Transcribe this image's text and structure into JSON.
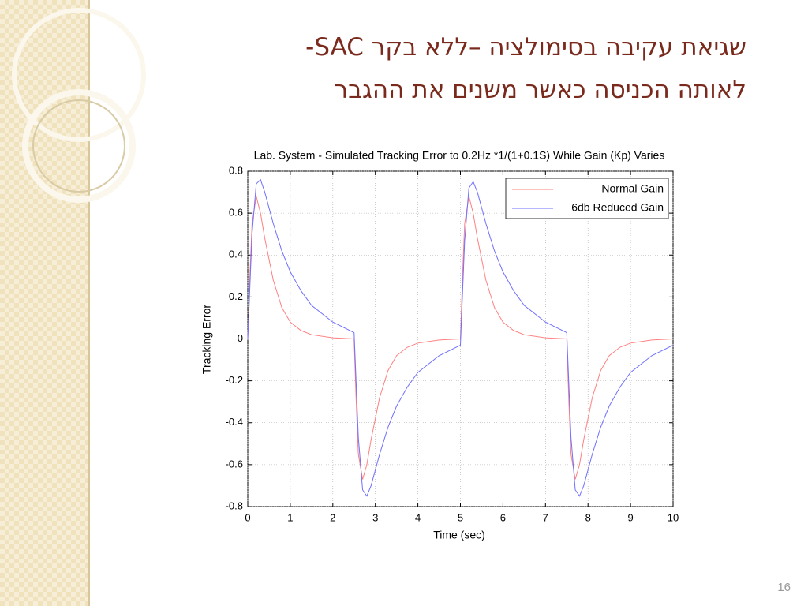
{
  "slide": {
    "title_lines": [
      "שגיאת עקיבה בסימולציה –ללא בקר SAC-",
      "לאותה הכניסה כאשר משנים את ההגבר"
    ],
    "page_number": "16"
  },
  "chart_data": {
    "type": "line",
    "title": "Lab. System - Simulated Tracking Error to 0.2Hz *1/(1+0.1S) While Gain (Kp) Varies",
    "x_label": "Time (sec)",
    "y_label": "Tracking Error",
    "x": [
      0,
      0.05,
      0.1,
      0.2,
      0.3,
      0.4,
      0.6,
      0.8,
      1,
      1.25,
      1.5,
      2,
      2.5,
      2.55,
      2.6,
      2.7,
      2.8,
      2.9,
      3.1,
      3.3,
      3.5,
      3.75,
      4,
      4.5,
      5,
      5.05,
      5.1,
      5.2,
      5.3,
      5.4,
      5.6,
      5.8,
      6,
      6.25,
      6.5,
      7,
      7.5,
      7.55,
      7.6,
      7.7,
      7.8,
      7.9,
      8.1,
      8.3,
      8.5,
      8.75,
      9,
      9.5,
      10
    ],
    "series": [
      {
        "name": "Normal Gain",
        "color": "#ff8080",
        "values": [
          0,
          0.3,
          0.55,
          0.68,
          0.6,
          0.48,
          0.28,
          0.15,
          0.08,
          0.04,
          0.02,
          0.005,
          0,
          -0.3,
          -0.55,
          -0.67,
          -0.6,
          -0.48,
          -0.28,
          -0.15,
          -0.08,
          -0.04,
          -0.02,
          -0.005,
          0,
          0.3,
          0.55,
          0.68,
          0.6,
          0.48,
          0.28,
          0.15,
          0.08,
          0.04,
          0.02,
          0.005,
          0,
          -0.3,
          -0.55,
          -0.67,
          -0.6,
          -0.48,
          -0.28,
          -0.15,
          -0.08,
          -0.04,
          -0.02,
          -0.005,
          0
        ]
      },
      {
        "name": "6db Reduced Gain",
        "color": "#6f6fff",
        "values": [
          0,
          0.25,
          0.5,
          0.74,
          0.76,
          0.7,
          0.55,
          0.42,
          0.32,
          0.23,
          0.16,
          0.08,
          0.03,
          -0.22,
          -0.47,
          -0.72,
          -0.75,
          -0.7,
          -0.55,
          -0.42,
          -0.32,
          -0.23,
          -0.16,
          -0.08,
          -0.03,
          0.22,
          0.47,
          0.72,
          0.75,
          0.7,
          0.55,
          0.42,
          0.32,
          0.23,
          0.16,
          0.08,
          0.03,
          -0.22,
          -0.47,
          -0.72,
          -0.75,
          -0.7,
          -0.55,
          -0.42,
          -0.32,
          -0.23,
          -0.16,
          -0.08,
          -0.03
        ]
      }
    ],
    "xlim": [
      0,
      10
    ],
    "ylim": [
      -0.8,
      0.8
    ],
    "xticks": [
      0,
      1,
      2,
      3,
      4,
      5,
      6,
      7,
      8,
      9,
      10
    ],
    "yticks": [
      -0.8,
      -0.6,
      -0.4,
      -0.2,
      0,
      0.2,
      0.4,
      0.6,
      0.8
    ],
    "grid": true,
    "legend": "upper-right"
  }
}
